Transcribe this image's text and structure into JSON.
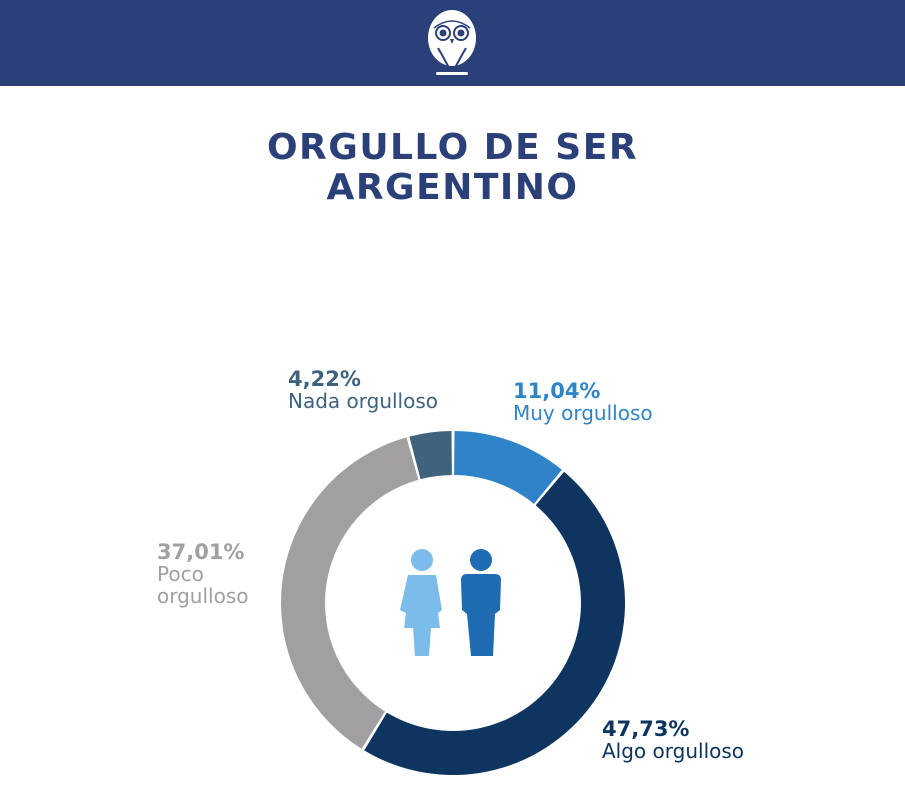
{
  "header": {
    "logo": "owl-logo",
    "background": "#2b3f79"
  },
  "title": {
    "line1": "ORGULLO DE SER",
    "line2": "ARGENTINO"
  },
  "chart_data": {
    "type": "pie",
    "subtype": "donut",
    "title": "ORGULLO DE SER ARGENTINO",
    "categories": [
      "Muy orgulloso",
      "Algo orgulloso",
      "Poco orgulloso",
      "Nada orgulloso"
    ],
    "values": [
      11.04,
      47.73,
      37.01,
      4.22
    ],
    "value_labels": [
      "11,04%",
      "47,73%",
      "37,01%",
      "4,22%"
    ],
    "colors": [
      "#2f84c9",
      "#0d3560",
      "#a19f9f",
      "#3f627e"
    ],
    "start_angle": "12 o'clock",
    "direction": "clockwise",
    "center_icon": "man-and-woman-icon",
    "legend": "direct labels"
  },
  "labels": {
    "muy": {
      "pct": "11,04%",
      "name": "Muy orgulloso",
      "color": "#2f84c9"
    },
    "algo": {
      "pct": "47,73%",
      "name": "Algo orgulloso",
      "color": "#0d3560"
    },
    "poco": {
      "pct": "37,01%",
      "name1": "Poco",
      "name2": "orgulloso",
      "color": "#a19f9f"
    },
    "nada": {
      "pct": "4,22%",
      "name": "Nada orgulloso",
      "color": "#3f627e"
    }
  }
}
